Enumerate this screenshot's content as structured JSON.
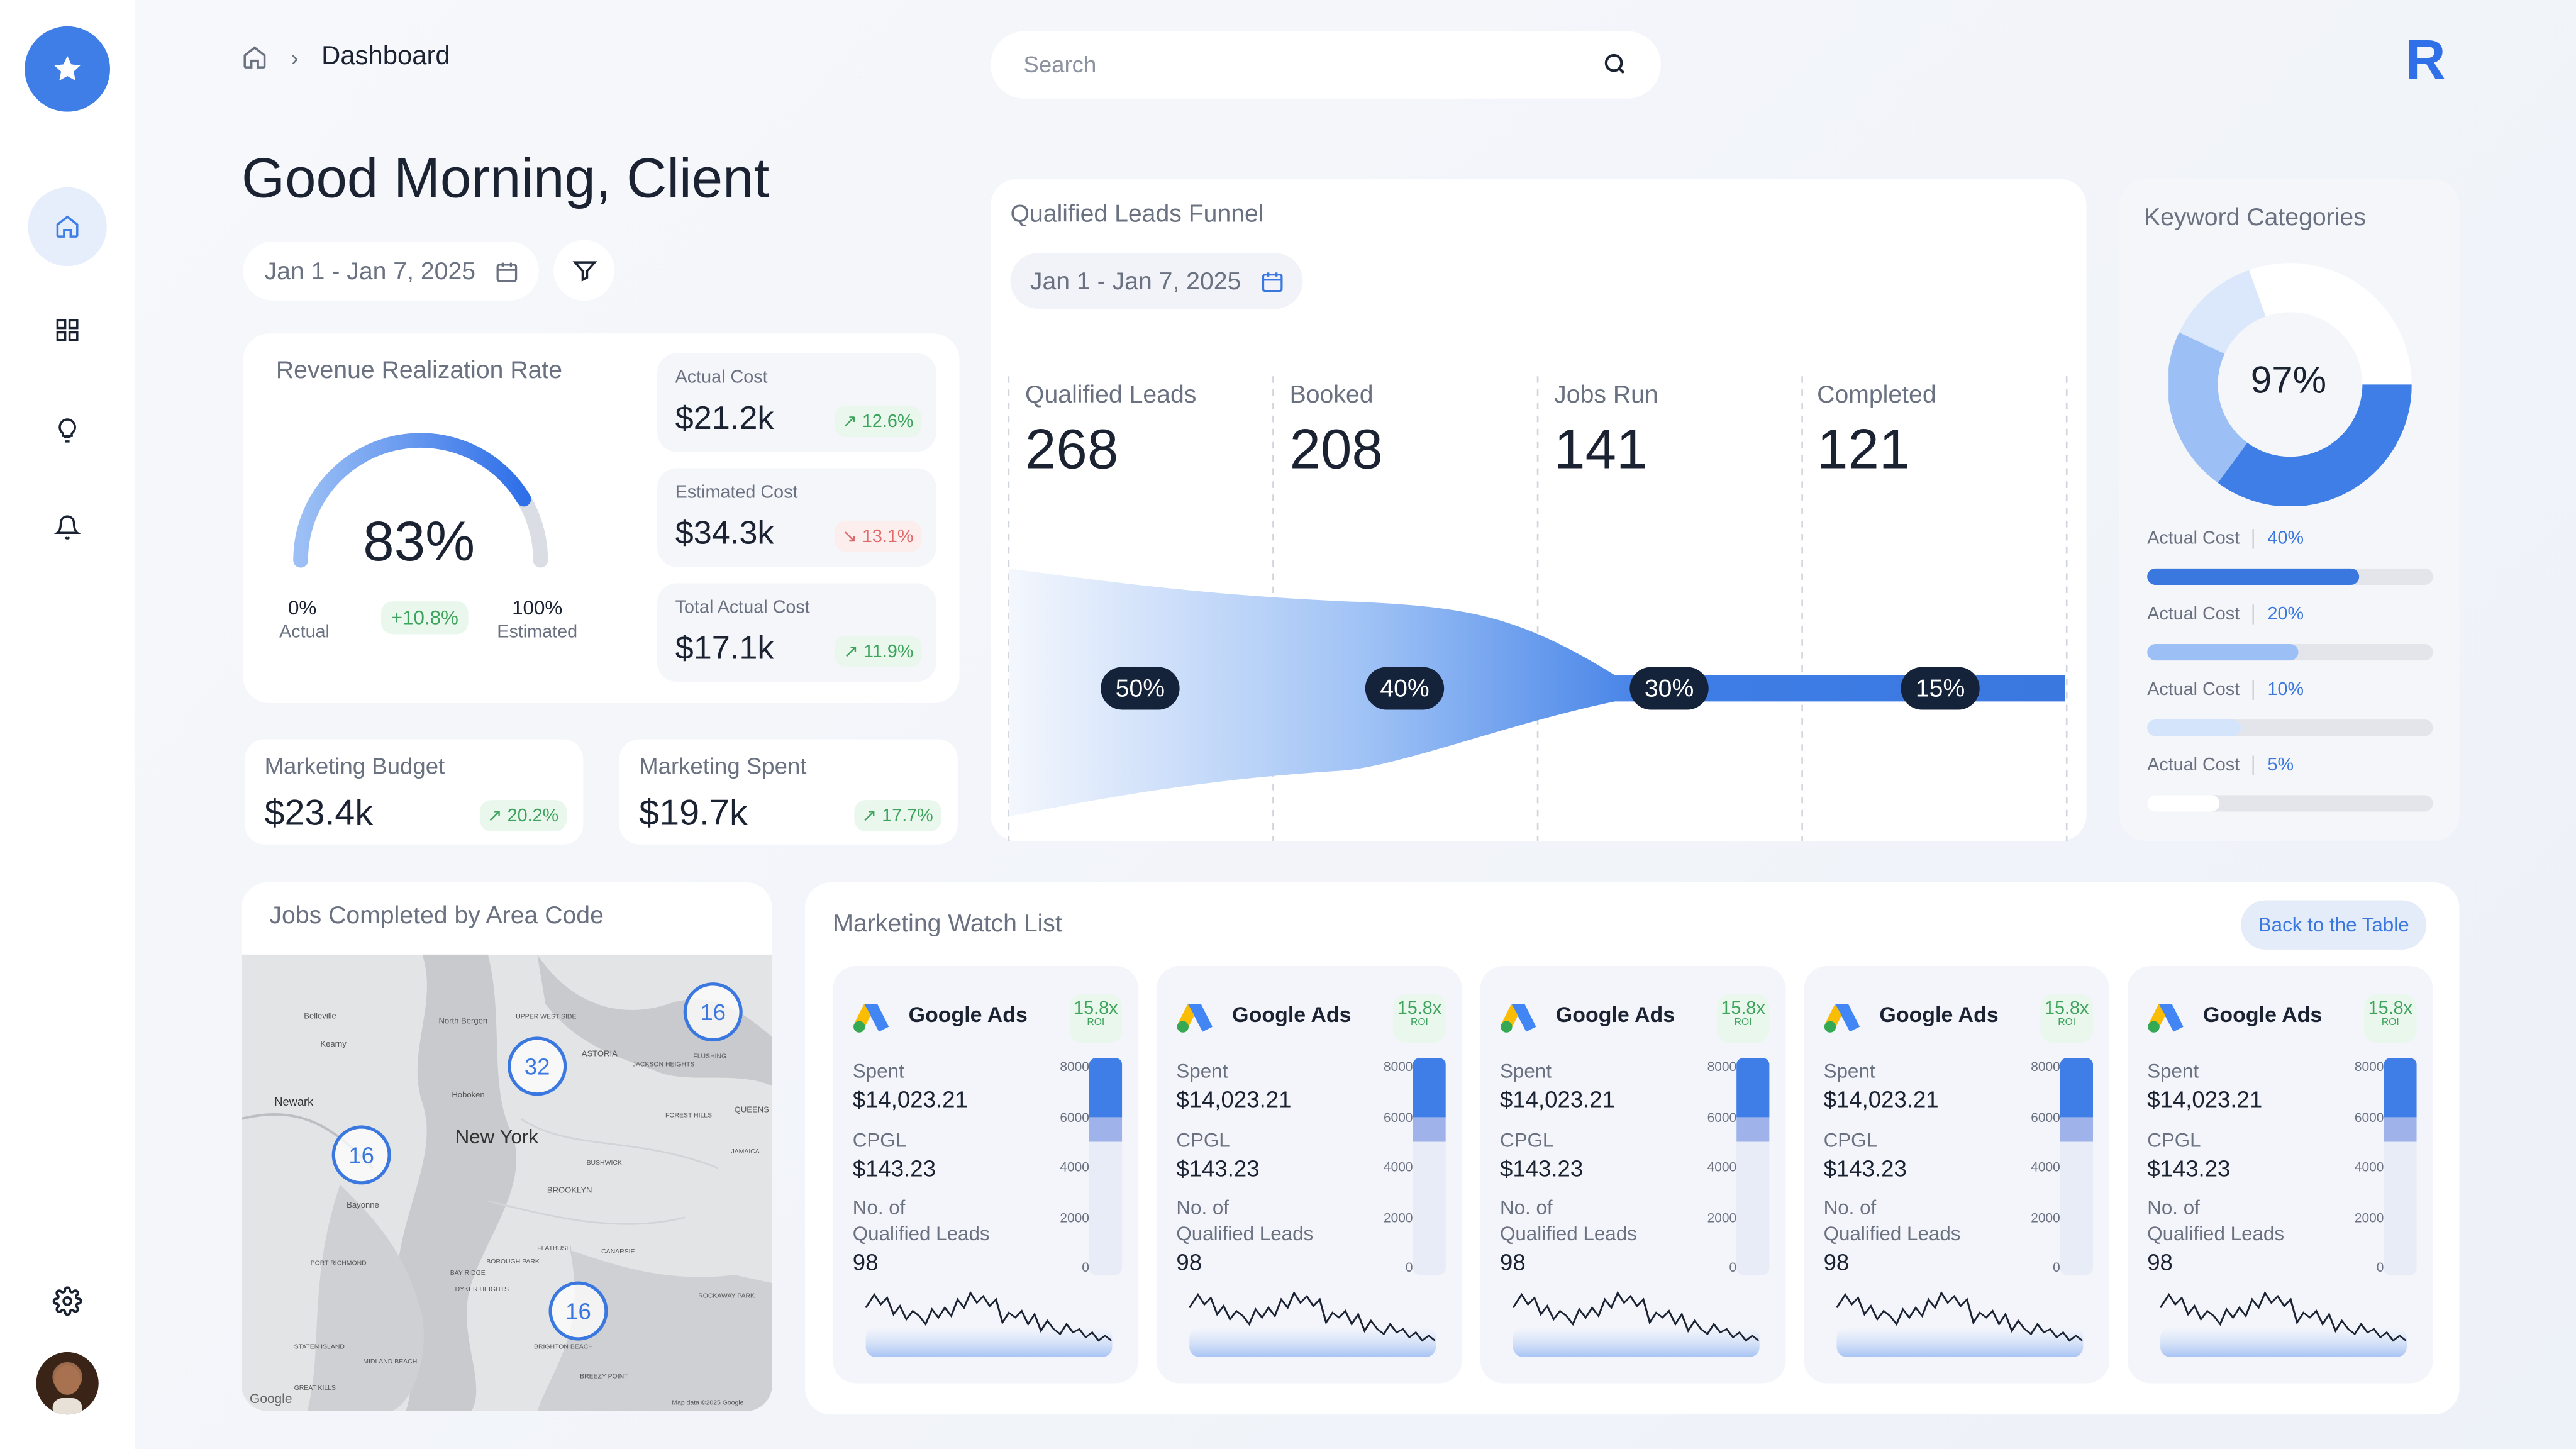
{
  "sidebar": {
    "logo_icon": "star-icon",
    "items": [
      "home-icon",
      "grid-icon",
      "lightbulb-icon",
      "bell-icon"
    ],
    "settings_icon": "gear-icon"
  },
  "header": {
    "breadcrumb": "Dashboard",
    "search_placeholder": "Search",
    "brand_letter": "R"
  },
  "greeting": "Good Morning, Client",
  "date_range": "Jan 1 - Jan 7, 2025",
  "revenue": {
    "title": "Revenue Realization Rate",
    "value": "83%",
    "gauge_fraction": 0.83,
    "min_label": "0%",
    "min_sub": "Actual",
    "delta": "+10.8%",
    "max_label": "100%",
    "max_sub": "Estimated",
    "stats": [
      {
        "label": "Actual Cost",
        "value": "$21.2k",
        "change": "12.6%",
        "dir": "up"
      },
      {
        "label": "Estimated Cost",
        "value": "$34.3k",
        "change": "13.1%",
        "dir": "down"
      },
      {
        "label": "Total Actual Cost",
        "value": "$17.1k",
        "change": "11.9%",
        "dir": "up"
      }
    ]
  },
  "budget": {
    "label": "Marketing Budget",
    "value": "$23.4k",
    "change": "20.2%"
  },
  "spent": {
    "label": "Marketing Spent",
    "value": "$19.7k",
    "change": "17.7%"
  },
  "funnel": {
    "title": "Qualified Leads Funnel",
    "date": "Jan 1 - Jan 7, 2025",
    "stages": [
      {
        "name": "Qualified Leads",
        "value": "268",
        "pct": "50%"
      },
      {
        "name": "Booked",
        "value": "208",
        "pct": "40%"
      },
      {
        "name": "Jobs Run",
        "value": "141",
        "pct": "30%"
      },
      {
        "name": "Completed",
        "value": "121",
        "pct": "15%"
      }
    ]
  },
  "keywords": {
    "title": "Keyword Categories",
    "donut_label": "97%",
    "rows": [
      {
        "label": "Actual Cost",
        "pct": "40%",
        "fill": 0.74,
        "color": "#3a78e0"
      },
      {
        "label": "Actual Cost",
        "pct": "20%",
        "fill": 0.53,
        "color": "#9cc0f5"
      },
      {
        "label": "Actual Cost",
        "pct": "10%",
        "fill": 0.33,
        "color": "#d4e4fb"
      },
      {
        "label": "Actual Cost",
        "pct": "5%",
        "fill": 0.25,
        "color": "#ffffff"
      }
    ]
  },
  "map": {
    "title": "Jobs Completed by Area Code",
    "clusters": [
      "16",
      "32",
      "16",
      "16"
    ],
    "labels": [
      "Belleville",
      "North Bergen",
      "UPPER WEST SIDE",
      "Kearny",
      "ASTORIA",
      "JACKSON HEIGHTS",
      "FLUSHING",
      "Newark",
      "Hoboken",
      "FOREST HILLS",
      "QUEENS",
      "New York",
      "BUSHWICK",
      "JAMAICA",
      "BROOKLYN",
      "Bayonne",
      "FLATBUSH",
      "CANARSIE",
      "PORT RICHMOND",
      "BOROUGH PARK",
      "BAY RIDGE",
      "DYKER HEIGHTS",
      "ROCKAWAY PARK",
      "STATEN ISLAND",
      "MIDLAND BEACH",
      "BRIGHTON BEACH",
      "BREEZY POINT",
      "GREAT KILLS",
      "Google",
      "Map data ©2025 Google"
    ]
  },
  "watchlist": {
    "title": "Marketing Watch List",
    "back_button": "Back to the Table",
    "card": {
      "name": "Google Ads",
      "roi": "15.8x",
      "roi_label": "ROI",
      "spent_label": "Spent",
      "spent": "$14,023.21",
      "cpgl_label": "CPGL",
      "cpgl": "$143.23",
      "leads_label1": "No. of",
      "leads_label2": "Qualified Leads",
      "leads": "98",
      "ticks": [
        "8000",
        "6000",
        "4000",
        "2000",
        "0"
      ],
      "bar_dark": 0.27,
      "bar_light": 0.39
    },
    "count": 5
  }
}
